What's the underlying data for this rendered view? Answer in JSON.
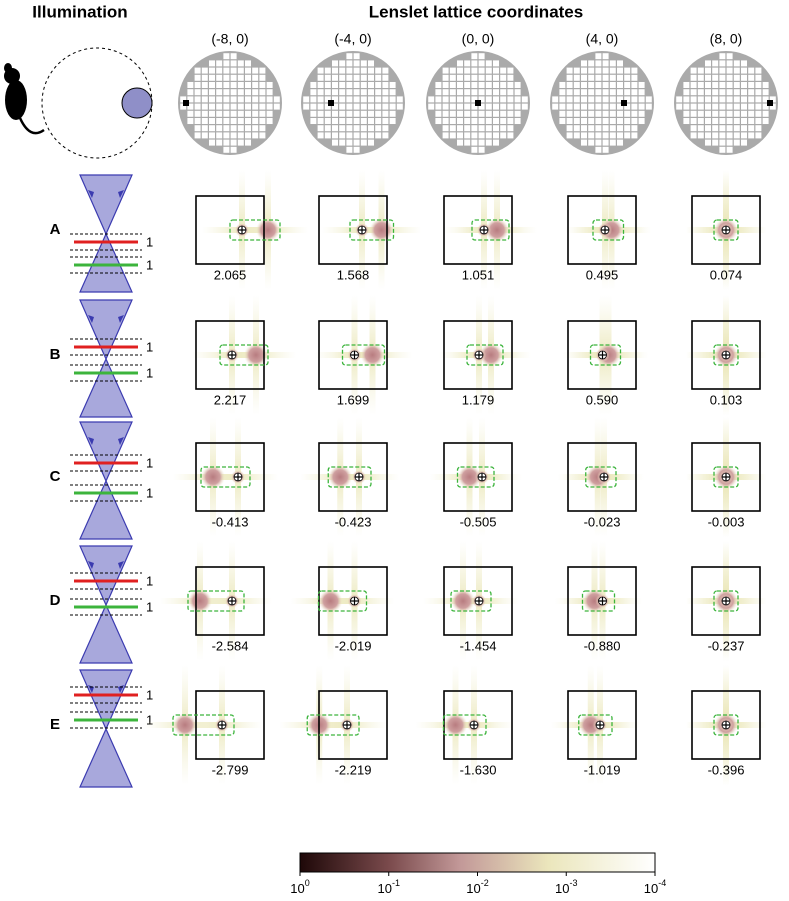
{
  "headers": {
    "illumination": "Illumination",
    "lenslet": "Lenslet lattice coordinates"
  },
  "columns": [
    "(-8, 0)",
    "(-4, 0)",
    "(0, 0)",
    "(4, 0)",
    "(8, 0)"
  ],
  "rows": [
    {
      "label": "A",
      "line_labels": [
        "1",
        "1"
      ],
      "values": [
        "2.065",
        "1.568",
        "1.051",
        "0.495",
        "0.074"
      ]
    },
    {
      "label": "B",
      "line_labels": [
        "1",
        "1"
      ],
      "values": [
        "2.217",
        "1.699",
        "1.179",
        "0.590",
        "0.103"
      ]
    },
    {
      "label": "C",
      "line_labels": [
        "1",
        "1"
      ],
      "values": [
        "-0.413",
        "-0.423",
        "-0.505",
        "-0.023",
        "-0.003"
      ]
    },
    {
      "label": "D",
      "line_labels": [
        "1",
        "1"
      ],
      "values": [
        "-2.584",
        "-2.019",
        "-1.454",
        "-0.880",
        "-0.237"
      ]
    },
    {
      "label": "E",
      "line_labels": [
        "1",
        "1"
      ],
      "values": [
        "-2.799",
        "-2.219",
        "-1.630",
        "-1.019",
        "-0.396"
      ]
    }
  ],
  "colorbar": {
    "ticks": [
      {
        "base": "10",
        "exp": "0"
      },
      {
        "base": "10",
        "exp": "-1"
      },
      {
        "base": "10",
        "exp": "-2"
      },
      {
        "base": "10",
        "exp": "-3"
      },
      {
        "base": "10",
        "exp": "-4"
      }
    ]
  }
}
